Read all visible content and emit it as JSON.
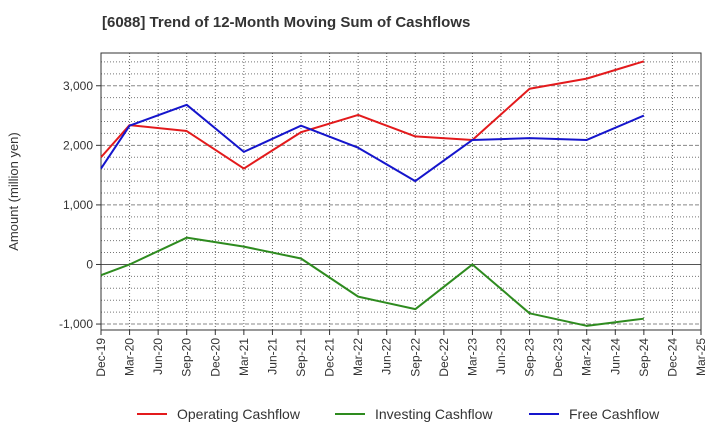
{
  "chart_data": {
    "type": "line",
    "title": "[6088]  Trend of 12-Month Moving Sum of Cashflows",
    "xlabel": "",
    "ylabel": "Amount (million yen)",
    "ylim": [
      -1100,
      3550
    ],
    "yticks": [
      -1000,
      0,
      1000,
      2000,
      3000
    ],
    "ytick_labels": [
      "-1,000",
      "0",
      "1,000",
      "2,000",
      "3,000"
    ],
    "categories": [
      "Dec-19",
      "Mar-20",
      "Jun-20",
      "Sep-20",
      "Dec-20",
      "Mar-21",
      "Jun-21",
      "Sep-21",
      "Dec-21",
      "Mar-22",
      "Jun-22",
      "Sep-22",
      "Dec-22",
      "Mar-23",
      "Jun-23",
      "Sep-23",
      "Dec-23",
      "Mar-24",
      "Jun-24",
      "Sep-24",
      "Dec-24",
      "Mar-25"
    ],
    "grid": true,
    "legend_position": "bottom",
    "series": [
      {
        "name": "Operating Cashflow",
        "color": "#e31a1c",
        "values": [
          1800,
          2340,
          null,
          2240,
          null,
          1610,
          null,
          2220,
          null,
          2510,
          null,
          2150,
          null,
          2090,
          null,
          2950,
          null,
          3120,
          null,
          3410,
          null,
          null
        ]
      },
      {
        "name": "Investing Cashflow",
        "color": "#2e8b1f",
        "values": [
          -180,
          0,
          null,
          450,
          null,
          300,
          null,
          100,
          null,
          -540,
          null,
          -750,
          null,
          0,
          null,
          -820,
          null,
          -1030,
          null,
          -910,
          null,
          null
        ]
      },
      {
        "name": "Free Cashflow",
        "color": "#1515cc",
        "values": [
          1610,
          2330,
          null,
          2680,
          null,
          1890,
          null,
          2330,
          null,
          1960,
          null,
          1400,
          null,
          2090,
          null,
          2120,
          null,
          2090,
          null,
          2500,
          null,
          null
        ]
      }
    ]
  }
}
